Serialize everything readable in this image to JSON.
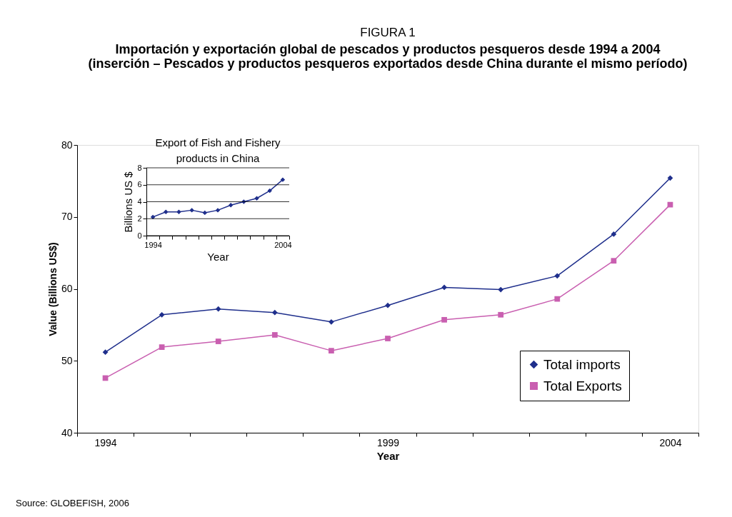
{
  "chart_data": [
    {
      "type": "line",
      "title": "FIGURA 1",
      "subtitle": "Importación y exportación global de pescados y productos pesqueros desde 1994 a 2004\n(inserción – Pescados y productos pesqueros exportados desde China durante el mismo período)",
      "xlabel": "Year",
      "ylabel": "Value (Billions US$)",
      "categories": [
        "1994",
        null,
        null,
        null,
        null,
        "1999",
        null,
        null,
        null,
        null,
        "2004"
      ],
      "series": [
        {
          "name": "Total imports",
          "color": "#1f2f8c",
          "marker": "diamond",
          "values": [
            51.2,
            56.4,
            57.2,
            56.7,
            55.4,
            57.7,
            60.2,
            59.9,
            61.8,
            67.6,
            75.4
          ]
        },
        {
          "name": "Total Exports",
          "color": "#c95fb0",
          "marker": "square",
          "values": [
            47.6,
            51.9,
            52.7,
            53.6,
            51.4,
            53.1,
            55.7,
            56.4,
            58.6,
            63.9,
            71.7
          ]
        }
      ],
      "ylim": [
        40,
        80
      ],
      "yticks": [
        40,
        50,
        60,
        70,
        80
      ],
      "legend": "bottom right",
      "annotations": [
        "Source: GLOBEFISH, 2006"
      ]
    },
    {
      "type": "line",
      "title": "Export of Fish and Fishery\nproducts in China",
      "xlabel": "Year",
      "ylabel": "Billions US $",
      "categories": [
        "1994",
        null,
        null,
        null,
        null,
        null,
        null,
        null,
        null,
        null,
        "2004"
      ],
      "values": [
        2.2,
        2.8,
        2.8,
        3.0,
        2.7,
        3.0,
        3.6,
        4.0,
        4.4,
        5.3,
        6.6
      ],
      "color": "#1f2f8c",
      "marker": "diamond",
      "ylim": [
        0,
        8
      ],
      "yticks": [
        0,
        2,
        4,
        6,
        8
      ],
      "grid": "y"
    }
  ]
}
